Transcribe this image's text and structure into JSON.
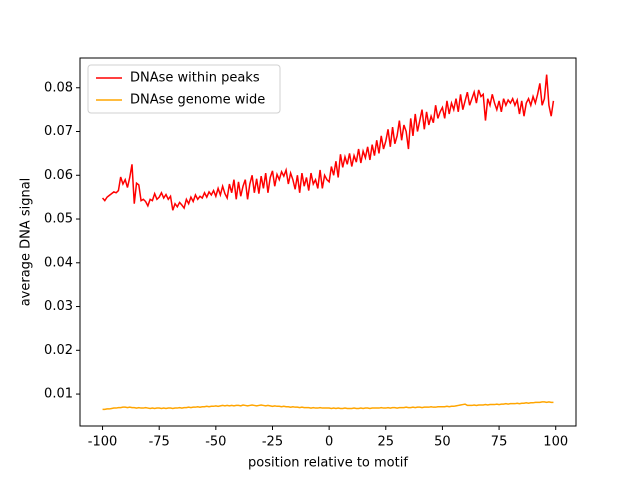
{
  "chart_data": {
    "type": "line",
    "xlabel": "position relative to motif",
    "ylabel": "average DNA signal",
    "x": [
      -100,
      -99,
      -98,
      -97,
      -96,
      -95,
      -94,
      -93,
      -92,
      -91,
      -90,
      -89,
      -88,
      -87,
      -86,
      -85,
      -84,
      -83,
      -82,
      -81,
      -80,
      -79,
      -78,
      -77,
      -76,
      -75,
      -74,
      -73,
      -72,
      -71,
      -70,
      -69,
      -68,
      -67,
      -66,
      -65,
      -64,
      -63,
      -62,
      -61,
      -60,
      -59,
      -58,
      -57,
      -56,
      -55,
      -54,
      -53,
      -52,
      -51,
      -50,
      -49,
      -48,
      -47,
      -46,
      -45,
      -44,
      -43,
      -42,
      -41,
      -40,
      -39,
      -38,
      -37,
      -36,
      -35,
      -34,
      -33,
      -32,
      -31,
      -30,
      -29,
      -28,
      -27,
      -26,
      -25,
      -24,
      -23,
      -22,
      -21,
      -20,
      -19,
      -18,
      -17,
      -16,
      -15,
      -14,
      -13,
      -12,
      -11,
      -10,
      -9,
      -8,
      -7,
      -6,
      -5,
      -4,
      -3,
      -2,
      -1,
      0,
      1,
      2,
      3,
      4,
      5,
      6,
      7,
      8,
      9,
      10,
      11,
      12,
      13,
      14,
      15,
      16,
      17,
      18,
      19,
      20,
      21,
      22,
      23,
      24,
      25,
      26,
      27,
      28,
      29,
      30,
      31,
      32,
      33,
      34,
      35,
      36,
      37,
      38,
      39,
      40,
      41,
      42,
      43,
      44,
      45,
      46,
      47,
      48,
      49,
      50,
      51,
      52,
      53,
      54,
      55,
      56,
      57,
      58,
      59,
      60,
      61,
      62,
      63,
      64,
      65,
      66,
      67,
      68,
      69,
      70,
      71,
      72,
      73,
      74,
      75,
      76,
      77,
      78,
      79,
      80,
      81,
      82,
      83,
      84,
      85,
      86,
      87,
      88,
      89,
      90,
      91,
      92,
      93,
      94,
      95,
      96,
      97,
      98,
      99
    ],
    "series": [
      {
        "name": "DNAse within peaks",
        "color": "#ff0000",
        "values": [
          0.0548,
          0.0542,
          0.055,
          0.0554,
          0.0558,
          0.0562,
          0.056,
          0.0565,
          0.0596,
          0.058,
          0.059,
          0.0572,
          0.0595,
          0.0625,
          0.0535,
          0.0582,
          0.0578,
          0.0542,
          0.0545,
          0.054,
          0.053,
          0.0545,
          0.0542,
          0.0558,
          0.0545,
          0.055,
          0.056,
          0.0548,
          0.0556,
          0.0545,
          0.0552,
          0.052,
          0.0535,
          0.0528,
          0.0538,
          0.0532,
          0.0525,
          0.0545,
          0.0535,
          0.055,
          0.054,
          0.0555,
          0.0545,
          0.0552,
          0.0548,
          0.056,
          0.055,
          0.0562,
          0.0555,
          0.0565,
          0.0552,
          0.057,
          0.0555,
          0.0575,
          0.0558,
          0.0548,
          0.058,
          0.056,
          0.059,
          0.0545,
          0.0585,
          0.0552,
          0.0575,
          0.059,
          0.0545,
          0.058,
          0.06,
          0.056,
          0.0592,
          0.0558,
          0.0598,
          0.057,
          0.0605,
          0.056,
          0.0595,
          0.061,
          0.0575,
          0.0602,
          0.059,
          0.0608,
          0.0598,
          0.0612,
          0.058,
          0.0605,
          0.059,
          0.0568,
          0.06,
          0.056,
          0.0605,
          0.0575,
          0.0595,
          0.0565,
          0.0605,
          0.058,
          0.059,
          0.057,
          0.0612,
          0.057,
          0.06,
          0.059,
          0.0585,
          0.062,
          0.06,
          0.0632,
          0.0595,
          0.0648,
          0.0618,
          0.0642,
          0.0625,
          0.065,
          0.062,
          0.0645,
          0.063,
          0.066,
          0.0628,
          0.0655,
          0.064,
          0.0665,
          0.0635,
          0.067,
          0.0645,
          0.068,
          0.065,
          0.069,
          0.066,
          0.0678,
          0.0705,
          0.0665,
          0.071,
          0.0672,
          0.069,
          0.0725,
          0.068,
          0.0715,
          0.07,
          0.066,
          0.073,
          0.069,
          0.074,
          0.07,
          0.0725,
          0.075,
          0.0705,
          0.0745,
          0.0715,
          0.0735,
          0.072,
          0.076,
          0.073,
          0.0745,
          0.0755,
          0.073,
          0.077,
          0.074,
          0.0765,
          0.075,
          0.0775,
          0.0745,
          0.0785,
          0.075,
          0.077,
          0.079,
          0.076,
          0.0775,
          0.079,
          0.0765,
          0.0795,
          0.078,
          0.0785,
          0.0725,
          0.0775,
          0.076,
          0.0785,
          0.0765,
          0.075,
          0.077,
          0.0745,
          0.0775,
          0.076,
          0.0772,
          0.0765,
          0.0775,
          0.076,
          0.0772,
          0.074,
          0.077,
          0.0735,
          0.0765,
          0.0775,
          0.076,
          0.078,
          0.0765,
          0.0785,
          0.081,
          0.076,
          0.0775,
          0.083,
          0.076,
          0.0735,
          0.077
        ]
      },
      {
        "name": "DNAse genome wide",
        "color": "#ffa500",
        "values": [
          0.0065,
          0.0065,
          0.0066,
          0.0066,
          0.0067,
          0.0068,
          0.0068,
          0.0069,
          0.0069,
          0.007,
          0.007,
          0.0069,
          0.007,
          0.0069,
          0.0069,
          0.0068,
          0.0069,
          0.0068,
          0.0068,
          0.0069,
          0.0068,
          0.0067,
          0.0068,
          0.0067,
          0.0068,
          0.0068,
          0.0067,
          0.0068,
          0.0067,
          0.0068,
          0.0068,
          0.0067,
          0.0068,
          0.0068,
          0.0069,
          0.0068,
          0.0069,
          0.0069,
          0.007,
          0.0069,
          0.007,
          0.007,
          0.0071,
          0.007,
          0.0071,
          0.0071,
          0.0072,
          0.0071,
          0.0072,
          0.0072,
          0.0073,
          0.0072,
          0.0073,
          0.0074,
          0.0073,
          0.0074,
          0.0073,
          0.0074,
          0.0073,
          0.0074,
          0.0074,
          0.0073,
          0.0075,
          0.0074,
          0.0073,
          0.0074,
          0.0075,
          0.0074,
          0.0073,
          0.0074,
          0.0075,
          0.0074,
          0.0073,
          0.0074,
          0.0073,
          0.0072,
          0.0073,
          0.0072,
          0.0072,
          0.0071,
          0.0072,
          0.0071,
          0.0071,
          0.007,
          0.0071,
          0.007,
          0.007,
          0.0069,
          0.007,
          0.0069,
          0.0069,
          0.0069,
          0.0068,
          0.0069,
          0.0068,
          0.0068,
          0.0069,
          0.0068,
          0.0068,
          0.0068,
          0.0068,
          0.0067,
          0.0068,
          0.0067,
          0.0068,
          0.0067,
          0.0067,
          0.0068,
          0.0067,
          0.0067,
          0.0067,
          0.0068,
          0.0067,
          0.0067,
          0.0068,
          0.0067,
          0.0068,
          0.0068,
          0.0067,
          0.0068,
          0.0068,
          0.0068,
          0.0068,
          0.0069,
          0.0068,
          0.0068,
          0.0069,
          0.0068,
          0.0069,
          0.0069,
          0.0068,
          0.0069,
          0.0069,
          0.0069,
          0.007,
          0.0069,
          0.0069,
          0.007,
          0.0069,
          0.007,
          0.007,
          0.0069,
          0.007,
          0.007,
          0.007,
          0.0071,
          0.007,
          0.007,
          0.0071,
          0.0071,
          0.0071,
          0.0071,
          0.0072,
          0.0071,
          0.0072,
          0.0072,
          0.0073,
          0.0074,
          0.0075,
          0.0076,
          0.0077,
          0.0074,
          0.0074,
          0.0074,
          0.0075,
          0.0074,
          0.0075,
          0.0075,
          0.0075,
          0.0076,
          0.0075,
          0.0076,
          0.0076,
          0.0076,
          0.0077,
          0.0076,
          0.0077,
          0.0077,
          0.0078,
          0.0077,
          0.0078,
          0.0078,
          0.0078,
          0.0079,
          0.0078,
          0.0079,
          0.0079,
          0.008,
          0.0079,
          0.008,
          0.008,
          0.0081,
          0.0081,
          0.0081,
          0.0082,
          0.0082,
          0.0081,
          0.0082,
          0.0081,
          0.0081
        ]
      }
    ],
    "xlim": [
      -109.95,
      108.95
    ],
    "xticks": [
      -100,
      -75,
      -50,
      -25,
      0,
      25,
      50,
      75,
      100
    ],
    "ylim": [
      0.0027,
      0.0868
    ],
    "yticks": [
      0.01,
      0.02,
      0.03,
      0.04,
      0.05,
      0.06,
      0.07,
      0.08
    ],
    "legend": "upper left"
  }
}
